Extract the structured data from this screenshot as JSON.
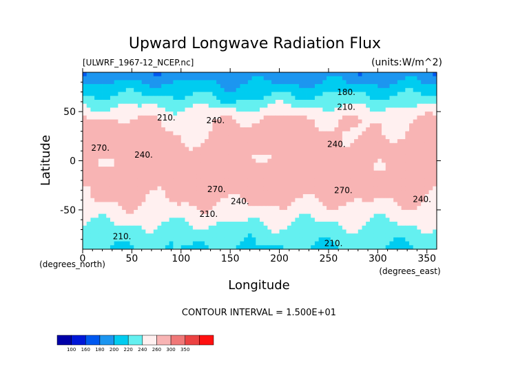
{
  "chart_data": {
    "type": "heatmap",
    "title": "Upward Longwave Radiation Flux",
    "subtitle_left": "[ULWRF_1967-12_NCEP.nc]",
    "subtitle_right": "(units:W/m^2)",
    "xlabel": "Longitude",
    "ylabel": "Latitude",
    "x_unit_label": "(degrees_east)",
    "y_unit_label": "(degrees_north)",
    "xlim": [
      0,
      360
    ],
    "ylim": [
      -90,
      90
    ],
    "x_ticks": [
      0,
      50,
      100,
      150,
      200,
      250,
      300,
      350
    ],
    "y_ticks": [
      -50,
      0,
      50
    ],
    "contour_interval_text": "CONTOUR INTERVAL = 1.500E+01",
    "contour_labels": [
      {
        "text": "180.",
        "lon": 268,
        "lat": 67
      },
      {
        "text": "210.",
        "lon": 268,
        "lat": 52
      },
      {
        "text": "210.",
        "lon": 85,
        "lat": 41
      },
      {
        "text": "240.",
        "lon": 135,
        "lat": 38
      },
      {
        "text": "240.",
        "lon": 62,
        "lat": 3
      },
      {
        "text": "270.",
        "lon": 18,
        "lat": 10
      },
      {
        "text": "270.",
        "lon": 136,
        "lat": -32
      },
      {
        "text": "240.",
        "lon": 160,
        "lat": -44
      },
      {
        "text": "240.",
        "lon": 345,
        "lat": -42
      },
      {
        "text": "270.",
        "lon": 265,
        "lat": -33
      },
      {
        "text": "210.",
        "lon": 128,
        "lat": -57
      },
      {
        "text": "210.",
        "lon": 40,
        "lat": -80
      },
      {
        "text": "210.",
        "lon": 255,
        "lat": -87
      },
      {
        "text": "240.",
        "lon": 258,
        "lat": 14
      }
    ],
    "colorbar": {
      "levels": [
        100,
        160,
        180,
        200,
        220,
        240,
        260,
        300,
        350
      ],
      "label_text": [
        "100",
        "160",
        "180",
        "200",
        "220",
        "240",
        "260",
        "300",
        "350"
      ],
      "colors": [
        "#0000a8",
        "#0018d8",
        "#0058f0",
        "#1c96f0",
        "#00ccf0",
        "#64f0f0",
        "#fff0f0",
        "#f8b4b4",
        "#f07878",
        "#ec4242",
        "#ff1010"
      ]
    }
  }
}
